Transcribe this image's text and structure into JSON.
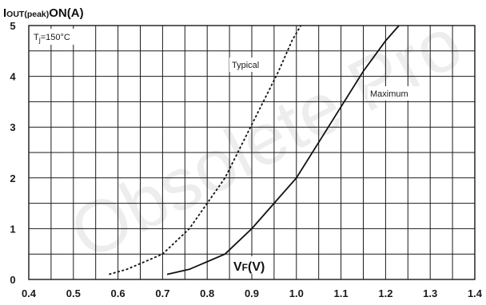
{
  "chart_data": {
    "type": "line",
    "watermark": "Obsolete Pro",
    "ylabel": {
      "main": "I",
      "sub": "OUT(peak)",
      "rest": "ON(A)"
    },
    "xlabel": {
      "main": "V",
      "sub": "F",
      "rest": "(V)"
    },
    "condition": {
      "prefix": "T",
      "sub": "j",
      "rest": "=150°C"
    },
    "xlim": [
      0.4,
      1.4
    ],
    "ylim": [
      0,
      5
    ],
    "x_ticks": [
      "0.4",
      "0.5",
      "0.6",
      "0.7",
      "0.8",
      "0.9",
      "1.0",
      "1.1",
      "1.2",
      "1.3",
      "1.4"
    ],
    "y_ticks": [
      "0",
      "1",
      "2",
      "3",
      "4",
      "5"
    ],
    "grid": true,
    "series": [
      {
        "name": "Typical",
        "style": "dashed",
        "x": [
          0.58,
          0.62,
          0.7,
          0.76,
          0.8,
          0.84,
          0.88,
          0.92,
          0.96,
          0.99,
          1.01
        ],
        "y": [
          0.1,
          0.2,
          0.5,
          1.0,
          1.5,
          2.0,
          2.7,
          3.4,
          4.1,
          4.7,
          5.0
        ]
      },
      {
        "name": "Maximum",
        "style": "solid",
        "x": [
          0.71,
          0.76,
          0.84,
          0.9,
          0.95,
          1.0,
          1.05,
          1.1,
          1.15,
          1.2,
          1.23
        ],
        "y": [
          0.1,
          0.2,
          0.5,
          1.0,
          1.5,
          2.0,
          2.7,
          3.4,
          4.1,
          4.7,
          5.0
        ]
      }
    ]
  }
}
